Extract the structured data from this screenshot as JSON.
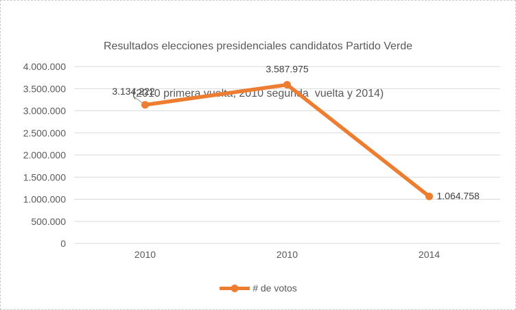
{
  "title": {
    "line1": "Resultados elecciones presidenciales candidatos Partido Verde",
    "line2": "(2010 primera vuelta, 2010 segunda  vuelta y 2014)"
  },
  "legend": {
    "label": "# de votos"
  },
  "chart_data": {
    "type": "line",
    "title": "Resultados elecciones presidenciales candidatos Partido Verde (2010 primera vuelta, 2010 segunda  vuelta y 2014)",
    "title_lines": [
      "Resultados elecciones presidenciales candidatos Partido Verde",
      "(2010 primera vuelta, 2010 segunda  vuelta y 2014)"
    ],
    "categories": [
      "2010",
      "2010",
      "2014"
    ],
    "series": [
      {
        "name": "# de votos",
        "color": "#ED7D31",
        "values": [
          3134222,
          3587975,
          1064758
        ],
        "data_labels": [
          "3.134.222",
          "3.587.975",
          "1.064.758"
        ],
        "label_placements": [
          "above-left-with-leader",
          "above",
          "right"
        ]
      }
    ],
    "xlabel": "",
    "ylabel": "",
    "ylim": [
      0,
      4000000
    ],
    "y_tick_step": 500000,
    "y_ticks": [
      {
        "value": 4000000,
        "label": "4.000.000"
      },
      {
        "value": 3500000,
        "label": "3.500.000"
      },
      {
        "value": 3000000,
        "label": "3.000.000"
      },
      {
        "value": 2500000,
        "label": "2.500.000"
      },
      {
        "value": 2000000,
        "label": "2.000.000"
      },
      {
        "value": 1500000,
        "label": "1.500.000"
      },
      {
        "value": 1000000,
        "label": "1.000.000"
      },
      {
        "value": 500000,
        "label": "500.000"
      },
      {
        "value": 0,
        "label": "0"
      }
    ],
    "grid": true,
    "legend_position": "bottom",
    "colors": {
      "series": "#ED7D31",
      "gridline": "#D9D9D9",
      "axis_text": "#595959",
      "title_text": "#595959",
      "data_label_text": "#404040",
      "leader_line": "#A6A6A6",
      "border": "#C9C9C9",
      "background": "#FFFFFF"
    }
  }
}
